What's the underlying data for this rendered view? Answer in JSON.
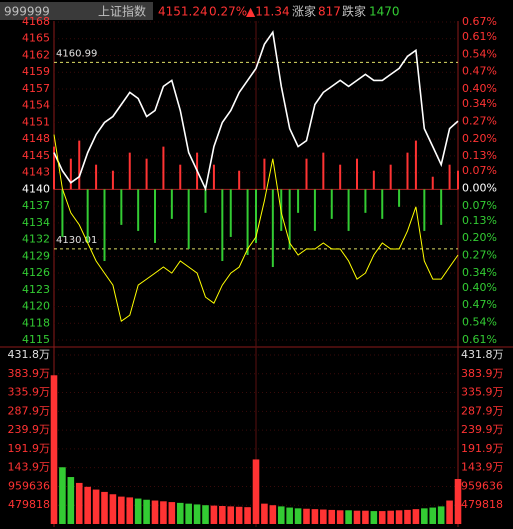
{
  "chart_data": [
    {
      "type": "line",
      "header": {
        "code": "999999",
        "name": "上证指数",
        "price": "4151.24",
        "pct": "0.27%",
        "change": "▲11.34",
        "up_label": "涨家",
        "up_count": "817",
        "down_label": "跌家",
        "down_count": "1470"
      },
      "x": [
        0,
        5,
        10,
        15,
        20,
        25,
        30,
        35,
        40,
        45,
        50,
        55,
        60,
        65,
        70,
        75,
        80,
        85,
        90,
        95,
        100,
        105,
        110,
        115,
        120,
        125,
        130,
        135,
        140,
        145,
        150,
        155,
        160,
        165,
        170,
        175,
        180,
        185,
        190,
        195,
        200,
        205,
        210,
        215,
        220,
        225,
        230,
        235,
        240
      ],
      "xlim": [
        0,
        240
      ],
      "ylim": [
        4114.88,
        4167.7
      ],
      "yticks": [
        {
          "value": 4167.7,
          "label": "4168"
        },
        {
          "value": 4164.92,
          "label": "4165"
        },
        {
          "value": 4162.14,
          "label": "4162"
        },
        {
          "value": 4159.36,
          "label": "4159"
        },
        {
          "value": 4156.58,
          "label": "4157"
        },
        {
          "value": 4153.8,
          "label": "4154"
        },
        {
          "value": 4151.02,
          "label": "4151"
        },
        {
          "value": 4148.24,
          "label": "4148"
        },
        {
          "value": 4145.46,
          "label": "4145"
        },
        {
          "value": 4142.68,
          "label": "4143"
        },
        {
          "value": 4139.9,
          "label": "4140"
        },
        {
          "value": 4137.12,
          "label": "4137"
        },
        {
          "value": 4134.34,
          "label": "4134"
        },
        {
          "value": 4131.56,
          "label": "4132"
        },
        {
          "value": 4128.78,
          "label": "4129"
        },
        {
          "value": 4126.0,
          "label": "4126"
        },
        {
          "value": 4123.22,
          "label": "4123"
        },
        {
          "value": 4120.44,
          "label": "4120"
        },
        {
          "value": 4117.66,
          "label": "4118"
        },
        {
          "value": 4114.88,
          "label": "4115"
        }
      ],
      "y2lim": [
        -0.61,
        0.67
      ],
      "y2ticks": [
        {
          "value": 0.67,
          "label": "0.67%"
        },
        {
          "value": 0.61,
          "label": "0.61%"
        },
        {
          "value": 0.54,
          "label": "0.54%"
        },
        {
          "value": 0.47,
          "label": "0.47%"
        },
        {
          "value": 0.4,
          "label": "0.40%"
        },
        {
          "value": 0.34,
          "label": "0.34%"
        },
        {
          "value": 0.27,
          "label": "0.27%"
        },
        {
          "value": 0.2,
          "label": "0.20%"
        },
        {
          "value": 0.13,
          "label": "0.13%"
        },
        {
          "value": 0.07,
          "label": "0.07%"
        },
        {
          "value": 0,
          "label": "0.00%"
        },
        {
          "value": -0.07,
          "label": "0.07%"
        },
        {
          "value": -0.13,
          "label": "0.13%"
        },
        {
          "value": -0.2,
          "label": "0.20%"
        },
        {
          "value": -0.27,
          "label": "0.27%"
        },
        {
          "value": -0.34,
          "label": "0.34%"
        },
        {
          "value": -0.4,
          "label": "0.40%"
        },
        {
          "value": -0.47,
          "label": "0.47%"
        },
        {
          "value": -0.54,
          "label": "0.54%"
        },
        {
          "value": -0.61,
          "label": "0.61%"
        }
      ],
      "ref_lines": [
        4160.99,
        4130.01
      ],
      "up_color": "#ff3333",
      "down_color": "#33cc33",
      "flat_color": "#ffffff",
      "series": [
        {
          "color": "#ffffff",
          "values": [
            4146,
            4143,
            4141,
            4142,
            4146,
            4149,
            4151,
            4152,
            4154,
            4156,
            4155,
            4152,
            4153,
            4157,
            4158,
            4153,
            4146,
            4143,
            4140,
            4147,
            4151,
            4153,
            4156,
            4158,
            4160,
            4164,
            4166,
            4157,
            4150,
            4147,
            4148,
            4154,
            4156,
            4157,
            4158,
            4157,
            4158,
            4159,
            4158,
            4158,
            4159,
            4160,
            4162,
            4163,
            4150,
            4147,
            4144,
            4150,
            4151.24
          ]
        },
        {
          "color": "#ffff00",
          "values": [
            4149,
            4140,
            4136,
            4134,
            4131,
            4128,
            4126,
            4124,
            4118,
            4119,
            4124,
            4125,
            4126,
            4127,
            4126,
            4128,
            4127,
            4126,
            4122,
            4121,
            4124,
            4126,
            4127,
            4130,
            4132,
            4138,
            4145,
            4136,
            4131,
            4129,
            4130,
            4130,
            4131,
            4130,
            4130,
            4128,
            4125,
            4126,
            4129,
            4131,
            4130,
            4130,
            4133,
            4137,
            4128,
            4125,
            4125,
            4127,
            4129
          ]
        }
      ],
      "bars": {
        "values": [
          4147,
          4132,
          4145,
          4148,
          4131,
          4144,
          4128,
          4143,
          4134,
          4146,
          4133,
          4145,
          4131,
          4147,
          4135,
          4144,
          4130,
          4146,
          4136,
          4144,
          4128,
          4132,
          4143,
          4129,
          4131,
          4145,
          4127,
          4133,
          4130,
          4136,
          4145,
          4133,
          4146,
          4135,
          4144,
          4133,
          4145,
          4136,
          4143,
          4135,
          4144,
          4137,
          4146,
          4148,
          4133,
          4142,
          4134,
          4144,
          4143
        ]
      }
    },
    {
      "type": "bar",
      "x": [
        0,
        5,
        10,
        15,
        20,
        25,
        30,
        35,
        40,
        45,
        50,
        55,
        60,
        65,
        70,
        75,
        80,
        85,
        90,
        95,
        100,
        105,
        110,
        115,
        120,
        125,
        130,
        135,
        140,
        145,
        150,
        155,
        160,
        165,
        170,
        175,
        180,
        185,
        190,
        195,
        200,
        205,
        210,
        215,
        220,
        225,
        230,
        235,
        240
      ],
      "xlim": [
        0,
        240
      ],
      "ylim": [
        0,
        4318362
      ],
      "yticks": [
        {
          "value": 4318362,
          "label": "431.8万"
        },
        {
          "value": 3838544,
          "label": "383.9万"
        },
        {
          "value": 3358726,
          "label": "335.9万"
        },
        {
          "value": 2878908,
          "label": "287.9万"
        },
        {
          "value": 2399090,
          "label": "239.9万"
        },
        {
          "value": 1919272,
          "label": "191.9万"
        },
        {
          "value": 1439454,
          "label": "143.9万"
        },
        959636,
        479818
      ],
      "values": [
        3800000,
        1450000,
        1200000,
        1050000,
        950000,
        880000,
        820000,
        760000,
        700000,
        680000,
        650000,
        620000,
        600000,
        580000,
        560000,
        540000,
        520000,
        500000,
        480000,
        470000,
        460000,
        450000,
        440000,
        430000,
        1650000,
        520000,
        480000,
        450000,
        420000,
        400000,
        390000,
        380000,
        370000,
        360000,
        350000,
        350000,
        340000,
        340000,
        330000,
        330000,
        340000,
        350000,
        360000,
        380000,
        400000,
        420000,
        450000,
        600000,
        1150000
      ]
    }
  ]
}
